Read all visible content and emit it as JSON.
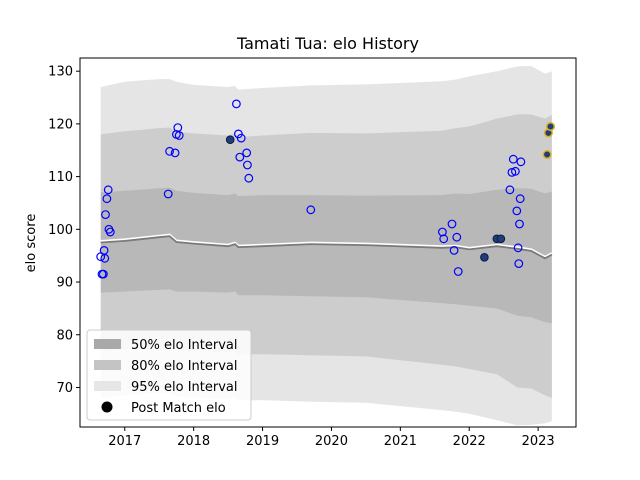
{
  "chart_data": {
    "type": "scatter",
    "title": "Tamati Tua: elo History",
    "xlabel": "",
    "ylabel": "elo score",
    "xlim": [
      2016.35,
      2023.55
    ],
    "ylim": [
      62.5,
      132.5
    ],
    "xticks": [
      2017,
      2018,
      2019,
      2020,
      2021,
      2022,
      2023
    ],
    "yticks": [
      70,
      80,
      90,
      100,
      110,
      120,
      130
    ],
    "legend_position": "lower-left",
    "legend": [
      {
        "label": "50% elo Interval",
        "kind": "patch",
        "color": "#a9a9a9"
      },
      {
        "label": "80% elo Interval",
        "kind": "patch",
        "color": "#c4c4c4"
      },
      {
        "label": "95% elo Interval",
        "kind": "patch",
        "color": "#e6e6e6"
      },
      {
        "label": "Post Match elo",
        "kind": "marker",
        "color": "#000000"
      }
    ],
    "band_x": [
      2016.65,
      2017.0,
      2017.5,
      2017.65,
      2017.75,
      2018.0,
      2018.5,
      2018.6,
      2018.65,
      2019.0,
      2019.7,
      2020.5,
      2021.6,
      2021.8,
      2022.0,
      2022.4,
      2022.7,
      2022.9,
      2023.1,
      2023.2
    ],
    "center": [
      97.5,
      97.8,
      98.5,
      98.7,
      97.6,
      97.3,
      96.8,
      97.2,
      96.6,
      96.8,
      97.2,
      97.0,
      96.5,
      96.6,
      96.2,
      96.8,
      96.3,
      95.9,
      94.5,
      95.2
    ],
    "band_50": {
      "lower": [
        88,
        88.2,
        88.5,
        88.6,
        88.2,
        88.2,
        88,
        88.2,
        87.5,
        87.5,
        87.3,
        87.1,
        86.0,
        85.8,
        85.5,
        85.0,
        83.6,
        83.3,
        82.4,
        82.2
      ],
      "upper": [
        107,
        107.3,
        107.8,
        107.9,
        107.3,
        106.9,
        106.5,
        106.8,
        106.3,
        106.5,
        106.5,
        106.4,
        106.5,
        106.8,
        106.7,
        107.5,
        107.8,
        107.7,
        106.8,
        107.2
      ]
    },
    "band_80": {
      "lower": [
        77,
        77.3,
        77.7,
        77.8,
        77.2,
        76.9,
        76.6,
        76.8,
        76.3,
        76.3,
        76.1,
        75.9,
        74.3,
        74.0,
        73.5,
        72.5,
        70.0,
        69.8,
        68.5,
        68.0
      ],
      "upper": [
        118,
        118.6,
        119.2,
        119.3,
        118.5,
        118.2,
        117.8,
        118.2,
        117.5,
        117.8,
        118.3,
        118.2,
        118.7,
        119.2,
        119.5,
        121.0,
        121.8,
        121.8,
        121.0,
        121.7
      ]
    },
    "band_95": {
      "lower": [
        68,
        68.5,
        69,
        69,
        68.3,
        68.1,
        67.7,
        68,
        67.5,
        67.6,
        67.3,
        67.1,
        65.7,
        65.4,
        65.0,
        63.8,
        62.8,
        62.9,
        63.2,
        63.6
      ],
      "upper": [
        127,
        128,
        128.5,
        128.5,
        128,
        127.4,
        127,
        127.2,
        126.5,
        126.8,
        127.3,
        127.5,
        128.1,
        128.4,
        129.0,
        130.0,
        130.9,
        131.0,
        129.5,
        130.0
      ]
    },
    "points": [
      {
        "x": 2016.65,
        "y": 94.8,
        "style": "open"
      },
      {
        "x": 2016.67,
        "y": 91.5,
        "style": "open"
      },
      {
        "x": 2016.69,
        "y": 91.5,
        "style": "open"
      },
      {
        "x": 2016.7,
        "y": 96.0,
        "style": "open"
      },
      {
        "x": 2016.71,
        "y": 94.5,
        "style": "open"
      },
      {
        "x": 2016.72,
        "y": 102.8,
        "style": "open"
      },
      {
        "x": 2016.74,
        "y": 105.8,
        "style": "open"
      },
      {
        "x": 2016.76,
        "y": 107.5,
        "style": "open"
      },
      {
        "x": 2016.77,
        "y": 100.0,
        "style": "open"
      },
      {
        "x": 2016.79,
        "y": 99.5,
        "style": "open"
      },
      {
        "x": 2017.63,
        "y": 106.7,
        "style": "open"
      },
      {
        "x": 2017.65,
        "y": 114.8,
        "style": "open"
      },
      {
        "x": 2017.73,
        "y": 114.5,
        "style": "open"
      },
      {
        "x": 2017.75,
        "y": 118.0,
        "style": "open"
      },
      {
        "x": 2017.77,
        "y": 119.3,
        "style": "open"
      },
      {
        "x": 2017.79,
        "y": 117.8,
        "style": "open"
      },
      {
        "x": 2018.53,
        "y": 117.0,
        "style": "filled"
      },
      {
        "x": 2018.62,
        "y": 123.8,
        "style": "open"
      },
      {
        "x": 2018.65,
        "y": 118.1,
        "style": "open"
      },
      {
        "x": 2018.67,
        "y": 113.7,
        "style": "open"
      },
      {
        "x": 2018.69,
        "y": 117.3,
        "style": "open"
      },
      {
        "x": 2018.77,
        "y": 114.5,
        "style": "open"
      },
      {
        "x": 2018.78,
        "y": 112.2,
        "style": "open"
      },
      {
        "x": 2018.8,
        "y": 109.7,
        "style": "open"
      },
      {
        "x": 2019.7,
        "y": 103.7,
        "style": "open"
      },
      {
        "x": 2021.61,
        "y": 99.5,
        "style": "open"
      },
      {
        "x": 2021.63,
        "y": 98.2,
        "style": "open"
      },
      {
        "x": 2021.75,
        "y": 101.0,
        "style": "open"
      },
      {
        "x": 2021.78,
        "y": 96.0,
        "style": "open"
      },
      {
        "x": 2021.82,
        "y": 98.5,
        "style": "open"
      },
      {
        "x": 2021.84,
        "y": 92.0,
        "style": "open"
      },
      {
        "x": 2022.22,
        "y": 94.7,
        "style": "filled"
      },
      {
        "x": 2022.4,
        "y": 98.2,
        "style": "filled"
      },
      {
        "x": 2022.46,
        "y": 98.2,
        "style": "filled"
      },
      {
        "x": 2022.59,
        "y": 107.5,
        "style": "open"
      },
      {
        "x": 2022.62,
        "y": 110.8,
        "style": "open"
      },
      {
        "x": 2022.64,
        "y": 113.3,
        "style": "open"
      },
      {
        "x": 2022.67,
        "y": 111.0,
        "style": "open"
      },
      {
        "x": 2022.69,
        "y": 103.5,
        "style": "open"
      },
      {
        "x": 2022.71,
        "y": 96.5,
        "style": "open"
      },
      {
        "x": 2022.72,
        "y": 93.5,
        "style": "open"
      },
      {
        "x": 2022.73,
        "y": 101.0,
        "style": "open"
      },
      {
        "x": 2022.74,
        "y": 105.8,
        "style": "open"
      },
      {
        "x": 2022.75,
        "y": 112.8,
        "style": "open"
      },
      {
        "x": 2023.13,
        "y": 114.2,
        "style": "gold"
      },
      {
        "x": 2023.15,
        "y": 118.3,
        "style": "gold"
      },
      {
        "x": 2023.18,
        "y": 119.5,
        "style": "gold"
      }
    ]
  }
}
